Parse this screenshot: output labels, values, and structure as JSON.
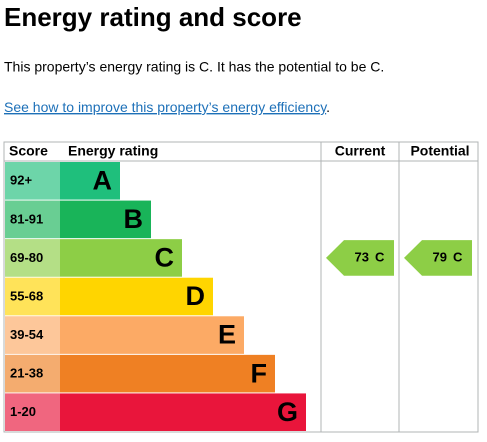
{
  "title": "Energy rating and score",
  "summary": "This property’s energy rating is C. It has the potential to be C.",
  "link": "See how to improve this property’s energy efficiency",
  "link_end": ".",
  "table": {
    "headers": [
      "Score",
      "Energy rating",
      "Current",
      "Potential"
    ],
    "bands": [
      {
        "score": "92+",
        "rating": "A",
        "color": "#1fbf7c"
      },
      {
        "score": "81-91",
        "rating": "B",
        "color": "#19b459"
      },
      {
        "score": "69-80",
        "rating": "C",
        "color": "#8dce46"
      },
      {
        "score": "55-68",
        "rating": "D",
        "color": "#ffd500"
      },
      {
        "score": "39-54",
        "rating": "E",
        "color": "#fcaa65"
      },
      {
        "score": "21-38",
        "rating": "F",
        "color": "#ef8023"
      },
      {
        "score": "1-20",
        "rating": "G",
        "color": "#e9153b"
      }
    ],
    "current": {
      "value": 73,
      "rating": "C"
    },
    "potential": {
      "value": 79,
      "rating": "C"
    }
  }
}
